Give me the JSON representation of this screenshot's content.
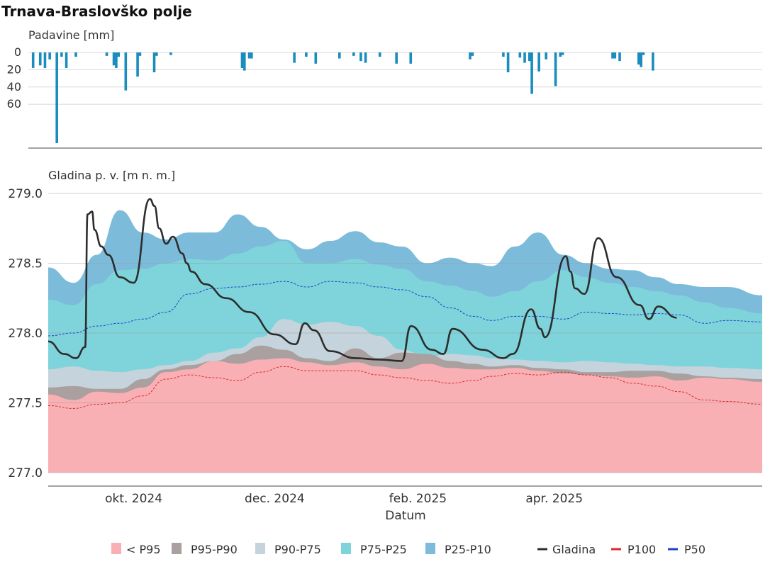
{
  "title": "Trnava-Braslovško polje",
  "colors": {
    "p95": "#f8b0b4",
    "p95_90": "#aaa0a0",
    "p90_75": "#c5d4dc",
    "p75_25": "#7ed4da",
    "p25_10": "#7cbcda",
    "gladina": "#2d2d2d",
    "p100": "#e0282a",
    "p50": "#2040c8",
    "rain": "#1a8cbd"
  },
  "chart_data": [
    {
      "type": "bar",
      "ylabel": "Padavine [mm]",
      "y_inverted": true,
      "ylim": [
        0,
        105
      ],
      "y_ticks": [
        0,
        20,
        40,
        60
      ],
      "xlim": [
        "2024-08-25",
        "2025-06-30"
      ],
      "series": [
        {
          "x": [
            "2024-08-27",
            "2024-08-30",
            "2024-09-01",
            "2024-09-03",
            "2024-09-06",
            "2024-09-08",
            "2024-09-10",
            "2024-09-14",
            "2024-09-27",
            "2024-09-30",
            "2024-10-01",
            "2024-10-02",
            "2024-10-05",
            "2024-10-10",
            "2024-10-11",
            "2024-10-17",
            "2024-10-18",
            "2024-10-24",
            "2024-11-23",
            "2024-11-24",
            "2024-11-26",
            "2024-11-27",
            "2024-12-15",
            "2024-12-20",
            "2024-12-24",
            "2025-01-03",
            "2025-01-09",
            "2025-01-12",
            "2025-01-14",
            "2025-01-20",
            "2025-01-27",
            "2025-02-02",
            "2025-02-27",
            "2025-02-28",
            "2025-03-13",
            "2025-03-15",
            "2025-03-20",
            "2025-03-22",
            "2025-03-24",
            "2025-03-25",
            "2025-03-28",
            "2025-03-31",
            "2025-04-04",
            "2025-04-06",
            "2025-04-07",
            "2025-04-28",
            "2025-04-29",
            "2025-05-01",
            "2025-05-09",
            "2025-05-10",
            "2025-05-11",
            "2025-05-15"
          ],
          "values": [
            18,
            15,
            18,
            8,
            105,
            5,
            18,
            5,
            4,
            15,
            18,
            5,
            44,
            28,
            4,
            23,
            4,
            3,
            18,
            21,
            7,
            7,
            12,
            5,
            13,
            7,
            4,
            10,
            12,
            5,
            13,
            13,
            8,
            4,
            5,
            23,
            6,
            12,
            10,
            48,
            22,
            8,
            39,
            5,
            3,
            7,
            7,
            10,
            14,
            17,
            3,
            21
          ]
        }
      ]
    },
    {
      "type": "area",
      "ylabel": "Gladina p. v. [m n. m.]",
      "xlabel": "Datum",
      "ylim": [
        277.0,
        279.0
      ],
      "y_ticks": [
        "279.0",
        "278.5",
        "278.0",
        "277.5",
        "277.0"
      ],
      "xlim": [
        "2024-08-25",
        "2025-06-30"
      ],
      "x_ticks": [
        {
          "date": "2024-10-01",
          "label": "okt. 2024"
        },
        {
          "date": "2024-12-01",
          "label": "dec. 2024"
        },
        {
          "date": "2025-02-01",
          "label": "feb. 2025"
        },
        {
          "date": "2025-04-01",
          "label": "apr. 2025"
        }
      ],
      "x": [
        "2024-08-25",
        "2024-09-05",
        "2024-09-15",
        "2024-09-25",
        "2024-10-05",
        "2024-10-15",
        "2024-10-25",
        "2024-11-05",
        "2024-11-15",
        "2024-11-25",
        "2024-12-05",
        "2024-12-15",
        "2024-12-25",
        "2025-01-05",
        "2025-01-15",
        "2025-01-25",
        "2025-02-05",
        "2025-02-15",
        "2025-02-25",
        "2025-03-05",
        "2025-03-15",
        "2025-03-25",
        "2025-04-05",
        "2025-04-15",
        "2025-04-25",
        "2025-05-05",
        "2025-05-15",
        "2025-05-25",
        "2025-06-05",
        "2025-06-15",
        "2025-06-30"
      ],
      "series": [
        {
          "name": "< P95",
          "values": [
            277.56,
            277.52,
            277.58,
            277.57,
            277.61,
            277.72,
            277.74,
            277.8,
            277.78,
            277.81,
            277.82,
            277.79,
            277.77,
            277.79,
            277.76,
            277.74,
            277.78,
            277.75,
            277.74,
            277.74,
            277.75,
            277.73,
            277.71,
            277.7,
            277.69,
            277.68,
            277.69,
            277.66,
            277.68,
            277.67,
            277.65
          ]
        },
        {
          "name": "P95-P90",
          "values": [
            277.61,
            277.62,
            277.6,
            277.6,
            277.67,
            277.74,
            277.77,
            277.8,
            277.85,
            277.91,
            277.88,
            277.82,
            277.8,
            277.89,
            277.82,
            277.86,
            277.85,
            277.8,
            277.78,
            277.76,
            277.77,
            277.75,
            277.74,
            277.72,
            277.72,
            277.73,
            277.73,
            277.71,
            277.69,
            277.68,
            277.67
          ]
        },
        {
          "name": "P90-P75",
          "values": [
            277.74,
            277.76,
            277.73,
            277.72,
            277.74,
            277.77,
            277.8,
            277.86,
            277.89,
            277.97,
            278.1,
            278.06,
            278.08,
            278.05,
            277.98,
            277.88,
            277.83,
            277.85,
            277.84,
            277.82,
            277.81,
            277.8,
            277.79,
            277.8,
            277.79,
            277.78,
            277.77,
            277.76,
            277.76,
            277.75,
            277.74
          ]
        },
        {
          "name": "P75-P25",
          "values": [
            278.24,
            278.2,
            278.35,
            278.45,
            278.46,
            278.5,
            278.53,
            278.52,
            278.57,
            278.62,
            278.66,
            278.5,
            278.5,
            278.53,
            278.49,
            278.46,
            278.37,
            278.34,
            278.3,
            278.26,
            278.3,
            278.37,
            278.45,
            278.4,
            278.36,
            278.33,
            278.3,
            278.27,
            278.22,
            278.18,
            278.14
          ]
        },
        {
          "name": "P25-P10",
          "values": [
            278.47,
            278.36,
            278.56,
            278.88,
            278.72,
            278.67,
            278.72,
            278.72,
            278.85,
            278.76,
            278.67,
            278.6,
            278.66,
            278.73,
            278.65,
            278.62,
            278.5,
            278.54,
            278.5,
            278.48,
            278.62,
            278.72,
            278.56,
            278.5,
            278.46,
            278.45,
            278.4,
            278.35,
            278.33,
            278.33,
            278.27
          ]
        },
        {
          "name": "P100",
          "values": [
            277.48,
            277.46,
            277.49,
            277.5,
            277.55,
            277.67,
            277.7,
            277.68,
            277.66,
            277.72,
            277.76,
            277.73,
            277.73,
            277.73,
            277.7,
            277.68,
            277.66,
            277.64,
            277.66,
            277.69,
            277.71,
            277.7,
            277.72,
            277.7,
            277.68,
            277.64,
            277.62,
            277.58,
            277.52,
            277.51,
            277.49
          ]
        },
        {
          "name": "P50",
          "values": [
            277.98,
            278.0,
            278.05,
            278.07,
            278.1,
            278.15,
            278.28,
            278.32,
            278.33,
            278.35,
            278.37,
            278.33,
            278.37,
            278.36,
            278.33,
            278.31,
            278.26,
            278.18,
            278.12,
            278.09,
            278.12,
            278.12,
            278.1,
            278.15,
            278.14,
            278.13,
            278.14,
            278.13,
            278.07,
            278.09,
            278.08
          ]
        }
      ],
      "gladina": {
        "name": "Gladina",
        "x": [
          "2024-08-25",
          "2024-09-01",
          "2024-09-06",
          "2024-09-10",
          "2024-09-11",
          "2024-09-13",
          "2024-09-14",
          "2024-09-17",
          "2024-09-20",
          "2024-09-25",
          "2024-10-01",
          "2024-10-08",
          "2024-10-10",
          "2024-10-12",
          "2024-10-15",
          "2024-10-18",
          "2024-10-22",
          "2024-10-24",
          "2024-10-26",
          "2024-11-01",
          "2024-11-10",
          "2024-11-20",
          "2024-12-01",
          "2024-12-10",
          "2024-12-14",
          "2024-12-18",
          "2024-12-25",
          "2025-01-05",
          "2025-01-15",
          "2025-01-25",
          "2025-01-29",
          "2025-02-07",
          "2025-02-12",
          "2025-02-16",
          "2025-03-01",
          "2025-03-10",
          "2025-03-14",
          "2025-03-22",
          "2025-03-26",
          "2025-03-28",
          "2025-04-06",
          "2025-04-08",
          "2025-04-10",
          "2025-04-14",
          "2025-04-20",
          "2025-04-28",
          "2025-05-08",
          "2025-05-12",
          "2025-05-16",
          "2025-05-24"
        ],
        "values": [
          277.94,
          277.85,
          277.82,
          277.9,
          278.85,
          278.87,
          278.74,
          278.62,
          278.56,
          278.4,
          278.36,
          278.96,
          278.91,
          278.75,
          278.64,
          278.69,
          278.57,
          278.5,
          278.44,
          278.35,
          278.25,
          278.15,
          277.99,
          277.92,
          278.07,
          278.02,
          277.87,
          277.82,
          277.81,
          277.8,
          278.05,
          277.88,
          277.85,
          278.03,
          277.88,
          277.82,
          277.85,
          278.17,
          278.03,
          277.97,
          278.55,
          278.44,
          278.32,
          278.28,
          278.68,
          278.4,
          278.2,
          278.1,
          278.19,
          278.11
        ]
      },
      "legend": [
        "< P95",
        "P95-P90",
        "P90-P75",
        "P75-P25",
        "P25-P10",
        "Gladina",
        "P100",
        "P50"
      ]
    }
  ]
}
